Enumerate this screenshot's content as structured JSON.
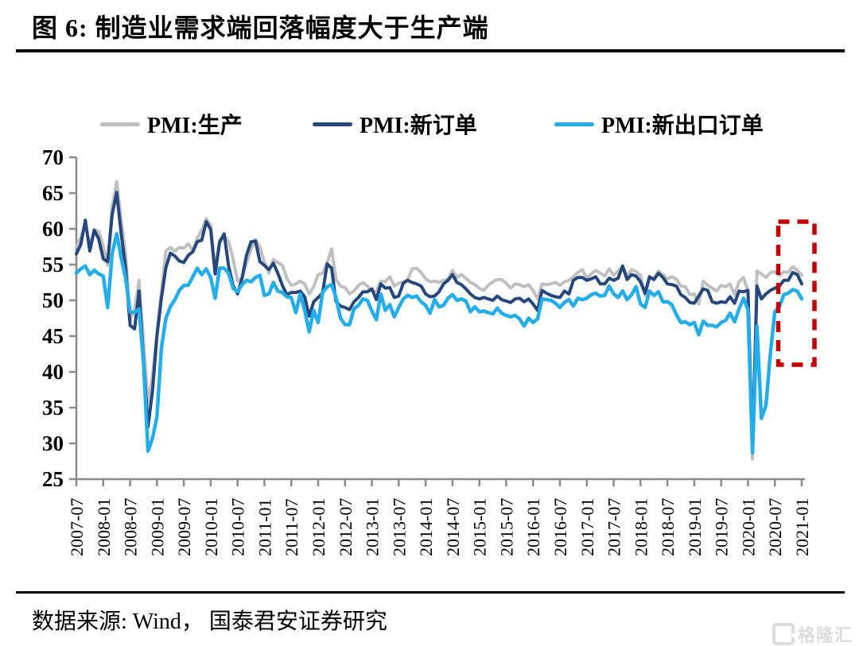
{
  "title": {
    "text": "图 6:  制造业需求端回落幅度大于生产端"
  },
  "source": {
    "text": "数据来源:  Wind， 国泰君安证券研究"
  },
  "watermark": {
    "text": "格隆汇"
  },
  "legend": [
    {
      "label": "PMI:生产",
      "color": "#c0c0c0"
    },
    {
      "label": "PMI:新订单",
      "color": "#26477b"
    },
    {
      "label": "PMI:新出口订单",
      "color": "#24ade8"
    }
  ],
  "chart_data": {
    "type": "line",
    "title": "制造业需求端回落幅度大于生产端",
    "xlabel": "",
    "ylabel": "",
    "ylim": [
      25,
      70
    ],
    "yticks": [
      25,
      30,
      35,
      40,
      45,
      50,
      55,
      60,
      65,
      70
    ],
    "grid": false,
    "legend_position": "top",
    "x_start": "2007-07",
    "x_end": "2021-01",
    "x_frequency": "monthly",
    "x_tick_labels": [
      "2007-07",
      "2008-01",
      "2008-07",
      "2009-01",
      "2009-07",
      "2010-01",
      "2010-07",
      "2011-01",
      "2011-07",
      "2012-01",
      "2012-07",
      "2013-01",
      "2013-07",
      "2014-01",
      "2014-07",
      "2015-01",
      "2015-07",
      "2016-01",
      "2016-07",
      "2017-01",
      "2017-07",
      "2018-01",
      "2018-07",
      "2019-01",
      "2019-07",
      "2020-01",
      "2020-07",
      "2021-01"
    ],
    "highlight": {
      "shape": "dashed-rect",
      "color": "#c00000",
      "from": "2020-09",
      "to": "2021-01",
      "y_from": 41,
      "y_to": 61
    },
    "series": [
      {
        "name": "PMI:生产",
        "color": "#c0c0c0",
        "values": [
          57.5,
          58.8,
          60.6,
          57.6,
          59.9,
          59.6,
          57.6,
          54.9,
          63.0,
          66.6,
          61.3,
          56.4,
          47.4,
          48.7,
          52.8,
          44.3,
          35.5,
          39.4,
          45.5,
          51.2,
          56.9,
          57.4,
          56.9,
          57.4,
          57.3,
          57.9,
          57.0,
          58.7,
          59.8,
          61.4,
          60.5,
          54.3,
          58.4,
          59.1,
          58.2,
          55.8,
          52.7,
          53.1,
          55.2,
          57.1,
          58.5,
          57.5,
          55.3,
          53.8,
          55.7,
          55.3,
          54.9,
          53.1,
          52.1,
          52.3,
          52.7,
          52.3,
          50.9,
          51.9,
          53.6,
          53.8,
          55.2,
          57.2,
          52.9,
          52.0,
          51.8,
          50.9,
          51.3,
          52.1,
          52.5,
          52.0,
          51.3,
          51.2,
          52.7,
          52.6,
          53.3,
          52.0,
          52.4,
          52.6,
          52.9,
          54.4,
          54.5,
          53.9,
          53.0,
          52.6,
          52.7,
          52.5,
          52.8,
          53.0,
          54.2,
          53.2,
          53.6,
          53.1,
          52.5,
          52.2,
          51.7,
          51.4,
          52.1,
          52.6,
          52.9,
          52.9,
          52.4,
          51.7,
          52.3,
          52.2,
          51.9,
          52.2,
          51.4,
          50.2,
          52.3,
          52.2,
          52.3,
          52.5,
          52.1,
          52.6,
          52.8,
          53.3,
          53.9,
          54.3,
          53.1,
          53.7,
          54.2,
          53.8,
          53.4,
          54.4,
          53.5,
          54.1,
          54.7,
          53.4,
          54.3,
          54.0,
          53.5,
          50.7,
          53.1,
          53.1,
          54.1,
          53.6,
          53.0,
          53.3,
          53.0,
          52.0,
          51.9,
          50.8,
          50.9,
          49.5,
          52.7,
          52.1,
          51.7,
          51.3,
          52.1,
          51.9,
          52.3,
          50.8,
          52.6,
          53.2,
          51.3,
          27.8,
          54.1,
          53.7,
          53.2,
          53.9,
          54.0,
          53.5,
          54.0,
          53.9,
          54.7,
          54.2,
          53.5
        ]
      },
      {
        "name": "PMI:新订单",
        "color": "#26477b",
        "values": [
          56.5,
          57.8,
          61.2,
          56.9,
          59.8,
          58.6,
          55.8,
          55.4,
          62.0,
          65.1,
          59.4,
          54.5,
          46.5,
          46.0,
          51.3,
          41.7,
          32.3,
          37.3,
          45.0,
          50.4,
          54.6,
          56.6,
          56.2,
          55.5,
          55.3,
          56.3,
          56.8,
          58.2,
          58.4,
          61.0,
          59.9,
          53.7,
          58.1,
          59.3,
          54.8,
          52.1,
          50.9,
          53.1,
          56.3,
          58.2,
          58.3,
          55.4,
          54.9,
          54.3,
          55.2,
          53.8,
          52.1,
          50.8,
          51.1,
          51.1,
          51.3,
          50.5,
          47.8,
          49.8,
          50.4,
          51.0,
          55.1,
          54.5,
          49.8,
          49.2,
          49.0,
          48.7,
          49.8,
          50.4,
          51.2,
          51.2,
          51.6,
          50.1,
          52.3,
          51.7,
          51.8,
          50.4,
          50.6,
          52.4,
          52.8,
          52.5,
          52.3,
          52.0,
          50.9,
          50.5,
          50.6,
          51.2,
          52.3,
          52.8,
          53.6,
          52.5,
          52.2,
          51.6,
          50.9,
          50.4,
          50.2,
          50.4,
          50.2,
          50.0,
          50.6,
          50.1,
          49.9,
          49.7,
          50.2,
          50.3,
          49.8,
          50.2,
          49.5,
          48.6,
          51.4,
          51.0,
          50.7,
          50.5,
          50.4,
          51.3,
          50.9,
          52.8,
          53.2,
          53.2,
          52.8,
          53.0,
          53.3,
          52.3,
          52.3,
          53.1,
          52.8,
          53.1,
          54.8,
          52.9,
          53.6,
          53.4,
          52.6,
          51.0,
          53.3,
          52.9,
          53.8,
          53.2,
          52.3,
          52.2,
          52.0,
          50.8,
          50.4,
          49.7,
          49.6,
          50.6,
          51.6,
          51.4,
          49.8,
          49.6,
          49.8,
          49.7,
          50.5,
          49.6,
          51.3,
          51.2,
          51.4,
          29.3,
          52.0,
          50.2,
          50.9,
          51.4,
          51.7,
          52.0,
          52.8,
          52.8,
          53.9,
          53.6,
          52.3
        ]
      },
      {
        "name": "PMI:新出口订单",
        "color": "#24ade8",
        "values": [
          53.8,
          54.4,
          54.8,
          53.6,
          54.2,
          53.7,
          53.4,
          49.0,
          56.5,
          59.3,
          56.0,
          53.1,
          48.4,
          48.3,
          48.8,
          41.4,
          28.9,
          30.7,
          33.7,
          43.4,
          47.5,
          49.1,
          50.1,
          51.4,
          52.1,
          52.1,
          53.3,
          54.5,
          53.6,
          54.4,
          53.2,
          50.3,
          54.5,
          54.5,
          53.8,
          51.7,
          51.2,
          52.2,
          52.8,
          52.6,
          53.2,
          53.5,
          50.7,
          50.9,
          52.5,
          51.3,
          51.1,
          50.5,
          50.4,
          48.3,
          50.9,
          48.6,
          45.6,
          48.6,
          46.9,
          51.1,
          51.9,
          52.2,
          50.4,
          47.5,
          46.6,
          46.6,
          48.8,
          49.3,
          50.2,
          50.0,
          48.5,
          47.3,
          50.9,
          48.6,
          49.4,
          47.7,
          49.0,
          50.2,
          50.7,
          50.4,
          50.6,
          49.8,
          49.3,
          48.2,
          50.1,
          49.1,
          49.3,
          50.3,
          50.8,
          50.0,
          50.2,
          49.9,
          48.4,
          49.1,
          48.4,
          48.5,
          48.3,
          48.1,
          48.9,
          48.2,
          47.9,
          47.7,
          47.9,
          47.4,
          46.4,
          47.5,
          46.9,
          47.4,
          50.2,
          50.1,
          50.0,
          49.6,
          49.0,
          49.7,
          50.1,
          49.2,
          50.3,
          50.1,
          50.3,
          50.8,
          51.0,
          50.6,
          50.7,
          52.0,
          50.9,
          50.4,
          51.3,
          50.1,
          50.8,
          51.9,
          49.5,
          49.0,
          51.3,
          50.7,
          51.2,
          49.8,
          49.8,
          49.4,
          48.0,
          46.9,
          47.0,
          46.6,
          46.9,
          45.2,
          47.1,
          46.5,
          46.5,
          46.3,
          46.9,
          47.2,
          48.2,
          47.0,
          48.8,
          50.3,
          48.7,
          28.7,
          46.4,
          33.5,
          35.3,
          42.6,
          48.4,
          49.1,
          50.8,
          51.0,
          51.5,
          51.3,
          50.2
        ]
      }
    ]
  }
}
